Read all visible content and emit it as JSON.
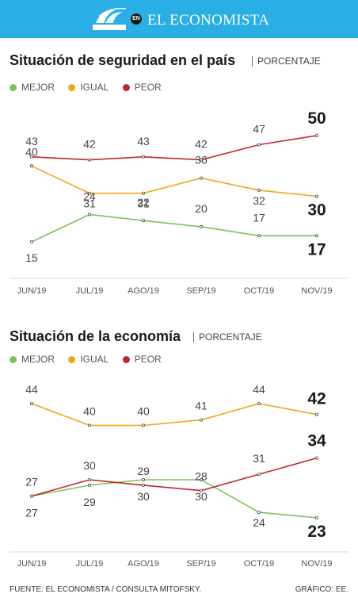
{
  "header": {
    "badge": "EN",
    "title": "EL ECONOMISTA",
    "logo_text": "CONSULTA MITOFSKY"
  },
  "colors": {
    "MEJOR": "#7dc35b",
    "IGUAL": "#f0a81e",
    "PEOR": "#c0272d",
    "header": "#29aee6"
  },
  "chart_data": [
    {
      "type": "line",
      "title": "Situación de seguridad en el país",
      "subtitle": "PORCENTAJE",
      "categories": [
        "JUN/19",
        "JUL/19",
        "AGO/19",
        "SEP/19",
        "OCT/19",
        "NOV/19"
      ],
      "series": [
        {
          "name": "MEJOR",
          "values": [
            15,
            24,
            22,
            20,
            17,
            17
          ]
        },
        {
          "name": "IGUAL",
          "values": [
            40,
            31,
            31,
            36,
            32,
            30
          ]
        },
        {
          "name": "PEOR",
          "values": [
            43,
            42,
            43,
            42,
            47,
            50
          ]
        }
      ],
      "grid": false,
      "legend": "top-left"
    },
    {
      "type": "line",
      "title": "Situación de la economía",
      "subtitle": "PORCENTAJE",
      "categories": [
        "JUN/19",
        "JUL/19",
        "AGO/19",
        "SEP/19",
        "OCT/19",
        "NOV/19"
      ],
      "series": [
        {
          "name": "MEJOR",
          "values": [
            27,
            29,
            30,
            30,
            24,
            23
          ]
        },
        {
          "name": "IGUAL",
          "values": [
            44,
            40,
            40,
            41,
            44,
            42
          ]
        },
        {
          "name": "PEOR",
          "values": [
            27,
            30,
            29,
            28,
            31,
            34
          ]
        }
      ],
      "grid": false,
      "legend": "top-left"
    }
  ],
  "footer": {
    "source": "FUENTE: EL ECONOMISTA / CONSULTA MITOFSKY.",
    "credit": "GRÁFICO: EE."
  }
}
